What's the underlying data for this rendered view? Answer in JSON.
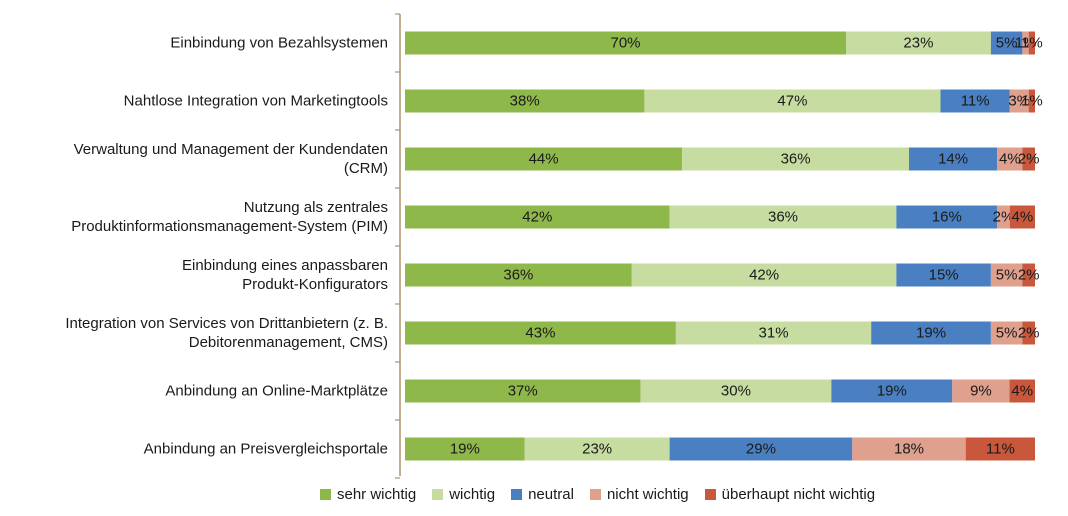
{
  "chart_data": {
    "type": "bar",
    "orientation": "horizontal",
    "stacked": true,
    "categories": [
      [
        "Einbindung von Bezahlsystemen"
      ],
      [
        "Nahtlose Integration von Marketingtools"
      ],
      [
        "Verwaltung und Management der Kundendaten",
        "(CRM)"
      ],
      [
        "Nutzung als zentrales",
        "Produktinformationsmanagement-System (PIM)"
      ],
      [
        "Einbindung eines anpassbaren",
        "Produkt-Konfigurators"
      ],
      [
        "Integration von Services von Drittanbietern (z. B.",
        "Debitorenmanagement, CMS)"
      ],
      [
        "Anbindung an Online-Marktplätze"
      ],
      [
        "Anbindung an Preisvergleichsportale"
      ]
    ],
    "series": [
      {
        "name": "sehr wichtig",
        "color": "#8fb84a",
        "values": [
          70,
          38,
          44,
          42,
          36,
          43,
          37,
          19
        ]
      },
      {
        "name": "wichtig",
        "color": "#c7dca1",
        "values": [
          23,
          47,
          36,
          36,
          42,
          31,
          30,
          23
        ]
      },
      {
        "name": "neutral",
        "color": "#4a7fc1",
        "values": [
          5,
          11,
          14,
          16,
          15,
          19,
          19,
          29
        ]
      },
      {
        "name": "nicht wichtig",
        "color": "#dfa08d",
        "values": [
          1,
          3,
          4,
          2,
          5,
          5,
          9,
          18
        ]
      },
      {
        "name": "überhaupt nicht wichtig",
        "color": "#c8573b",
        "values": [
          1,
          1,
          2,
          4,
          2,
          2,
          4,
          11
        ]
      }
    ],
    "xlim": [
      0,
      100
    ],
    "legend_position": "bottom",
    "grid": false
  }
}
